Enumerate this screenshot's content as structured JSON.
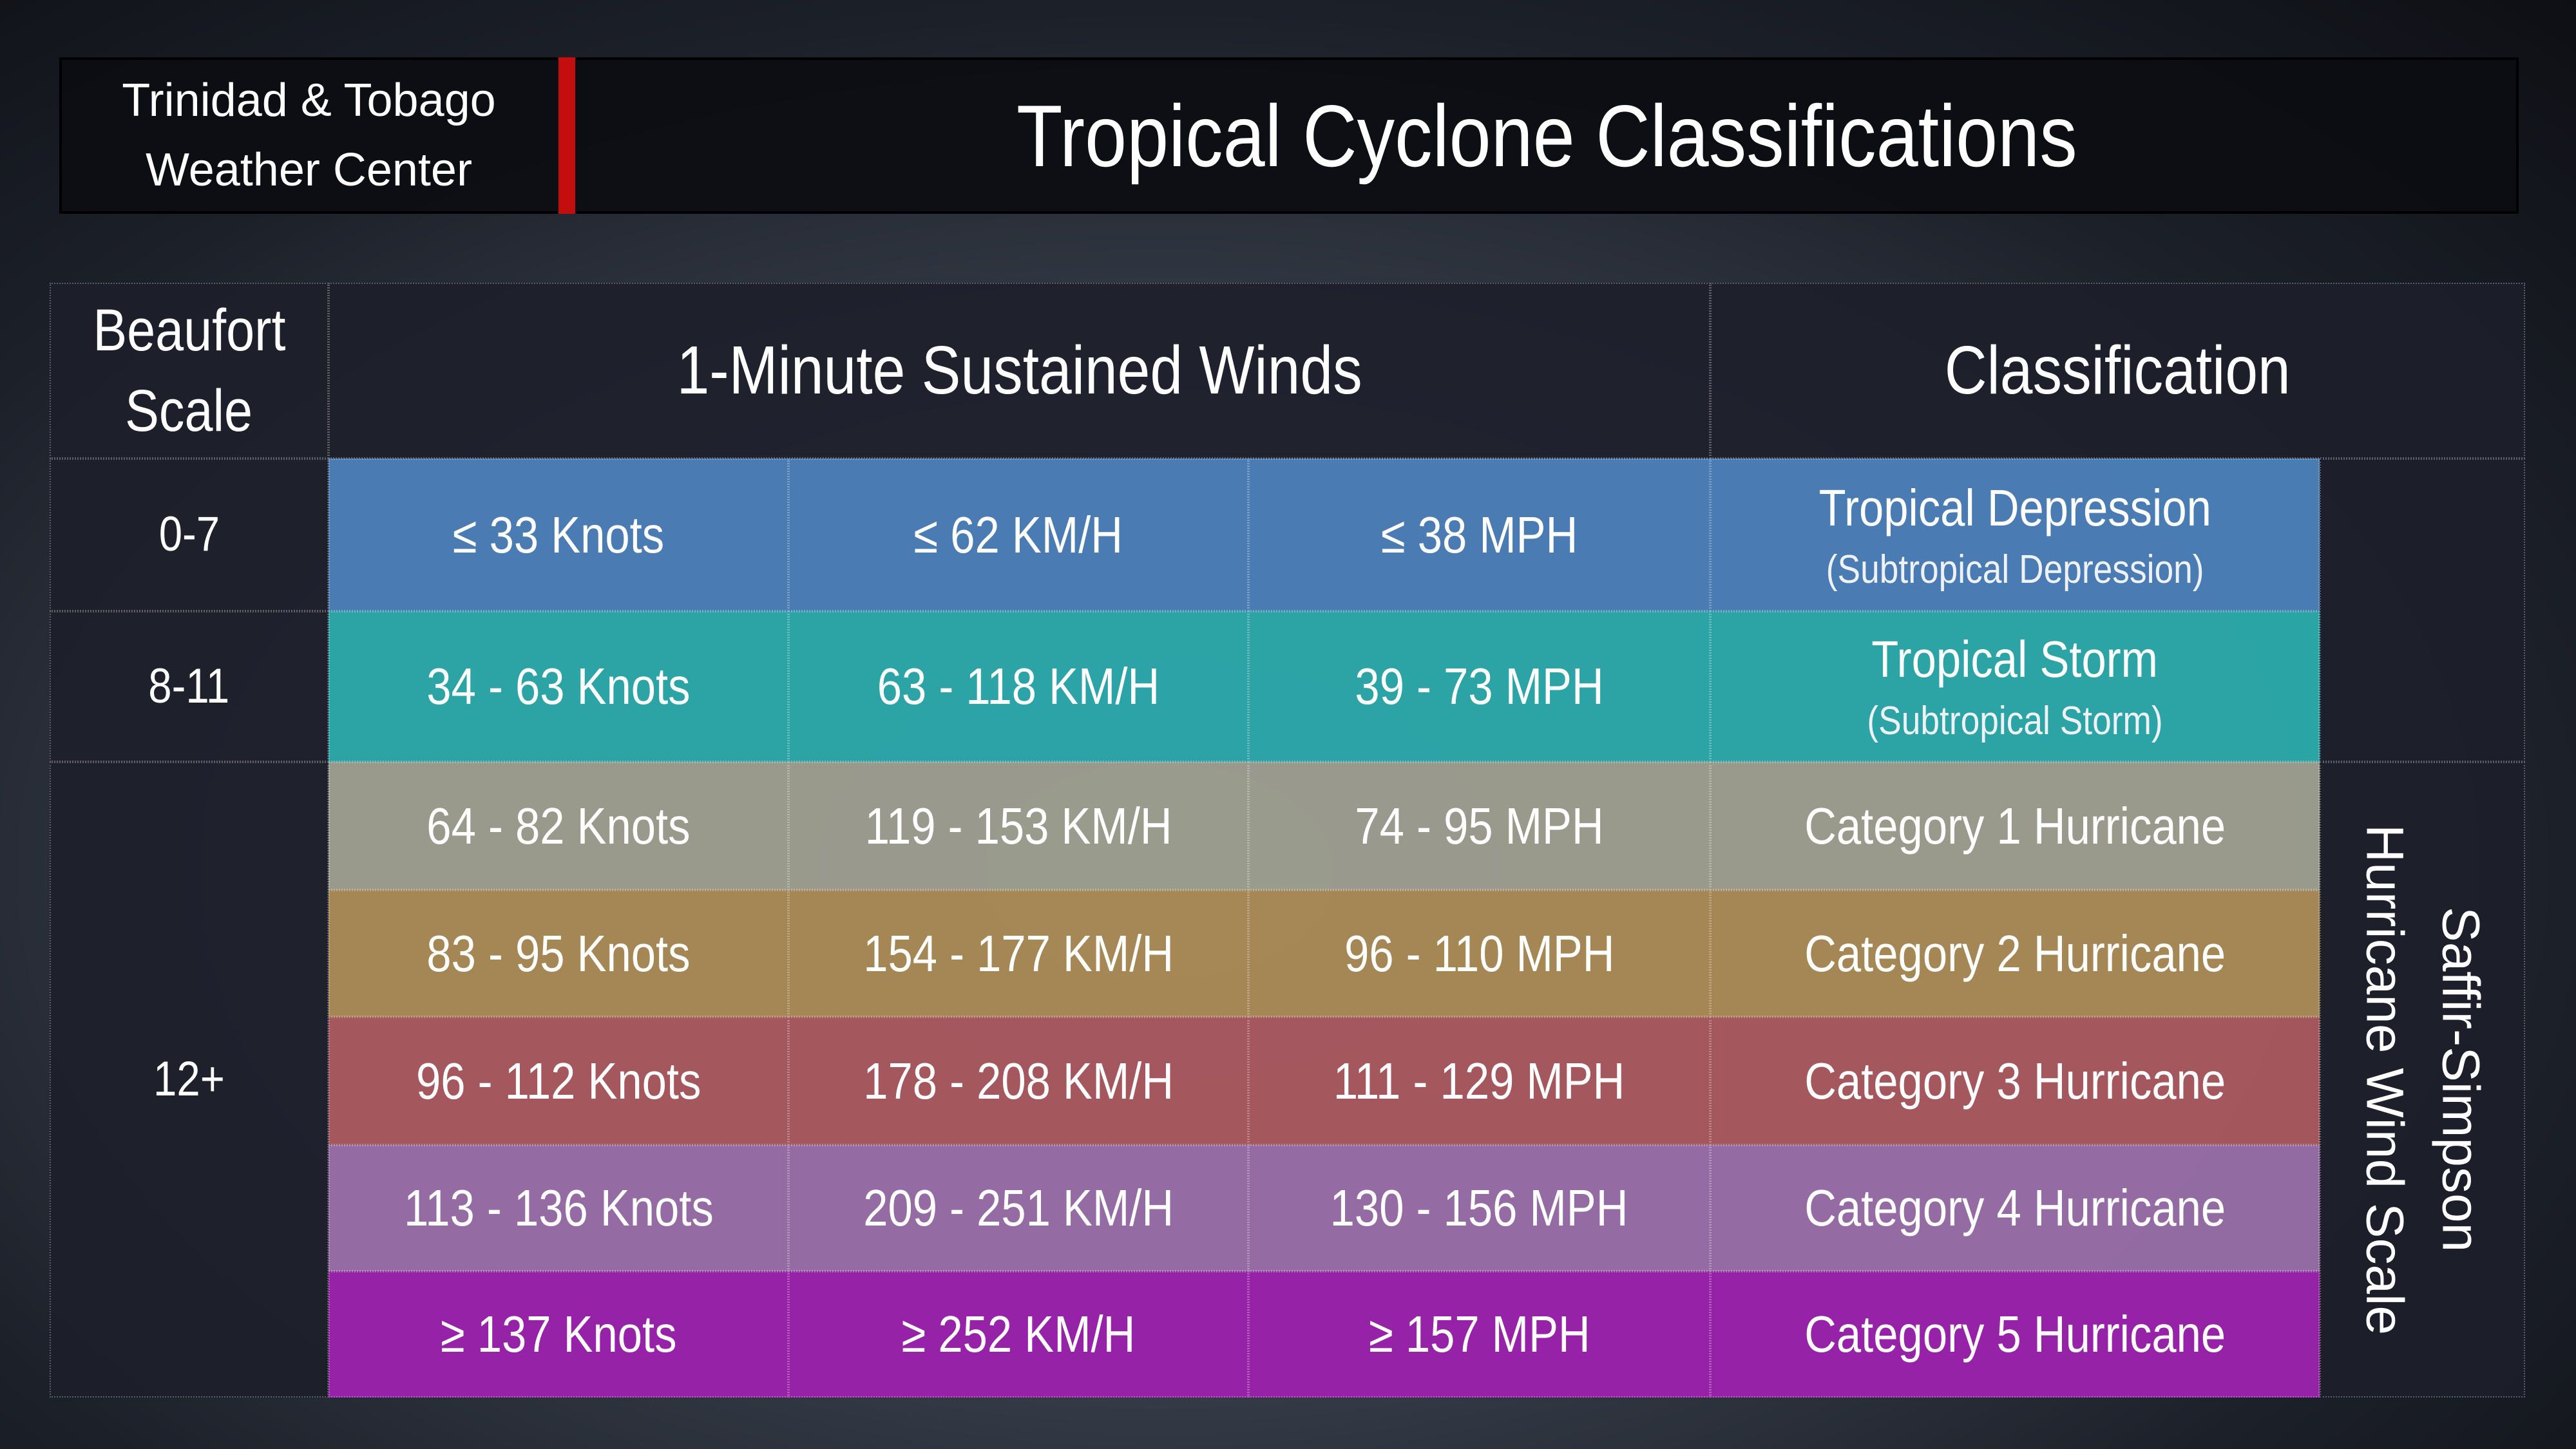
{
  "header": {
    "org": [
      "Trinidad & Tobago",
      "Weather Center"
    ],
    "title": "Tropical Cyclone Classifications"
  },
  "table": {
    "headers": {
      "beaufort": [
        "Beaufort",
        "Scale"
      ],
      "winds": "1-Minute Sustained Winds",
      "classification": "Classification"
    },
    "beaufort": [
      "0-7",
      "8-11",
      "12+"
    ],
    "side_label": [
      "Saffir-Simpson",
      "Hurricane Wind Scale"
    ],
    "rows": [
      {
        "knots": "≤ 33 Knots",
        "kmh": "≤ 62 KM/H",
        "mph": "≤ 38 MPH",
        "classification": "Tropical Depression",
        "sub": "(Subtropical Depression)",
        "color": "#4f86c2"
      },
      {
        "knots": "34 - 63 Knots",
        "kmh": "63 - 118 KM/H",
        "mph": "39 - 73 MPH",
        "classification": "Tropical Storm",
        "sub": "(Subtropical Storm)",
        "color": "#2db3b4"
      },
      {
        "knots": "64 - 82 Knots",
        "kmh": "119 - 153 KM/H",
        "mph": "74 - 95 MPH",
        "classification": "Category 1 Hurricane",
        "color": "#a6a797"
      },
      {
        "knots": "83 - 95 Knots",
        "kmh": "154 - 177 KM/H",
        "mph": "96 - 110 MPH",
        "classification": "Category 2 Hurricane",
        "color": "#b4925a"
      },
      {
        "knots": "96 - 112 Knots",
        "kmh": "178 - 208 KM/H",
        "mph": "111 - 129 MPH",
        "classification": "Category 3 Hurricane",
        "color": "#b35d63"
      },
      {
        "knots": "113 - 136 Knots",
        "kmh": "209 - 251 KM/H",
        "mph": "130 - 156 MPH",
        "classification": "Category 4 Hurricane",
        "color": "#a173b0"
      },
      {
        "knots": "≥ 137 Knots",
        "kmh": "≥ 252 KM/H",
        "mph": "≥ 157 MPH",
        "classification": "Category 5 Hurricane",
        "color": "#a322b5"
      }
    ]
  }
}
